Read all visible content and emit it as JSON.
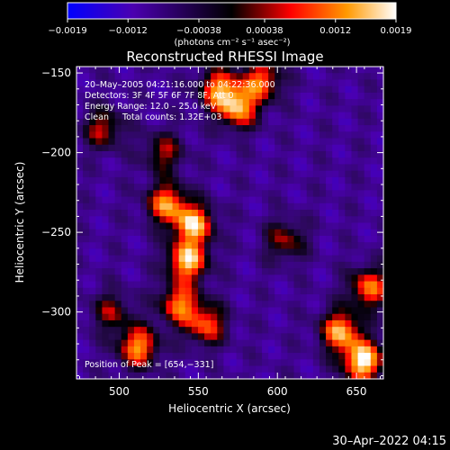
{
  "chart_data": {
    "type": "heatmap",
    "title": "Reconstructed RHESSI Image",
    "xlabel": "Heliocentric X (arcsec)",
    "ylabel": "Heliocentric Y (arcsec)",
    "xlim": [
      473,
      667
    ],
    "ylim": [
      -342,
      -146
    ],
    "x_ticks": [
      500,
      550,
      600,
      650
    ],
    "x_tick_labels": [
      "500",
      "550",
      "600",
      "650"
    ],
    "y_ticks": [
      -150,
      -200,
      -250,
      -300
    ],
    "y_tick_labels": [
      "−150",
      "−200",
      "−250",
      "−300"
    ],
    "colorbar": {
      "range": [
        -0.0019,
        0.0019
      ],
      "ticks": [
        -0.0019,
        -0.0012,
        -0.00038,
        0.00038,
        0.0012,
        0.0019
      ],
      "tick_labels": [
        "−0.0019",
        "−0.0012",
        "−0.00038",
        "0.00038",
        "0.0012",
        "0.0019"
      ],
      "units_label": "(photons cm⁻² s⁻¹ asec⁻²)",
      "colors": [
        "#0000ff",
        "#4b00b0",
        "#000000",
        "#ff0000",
        "#ff9900",
        "#ffffff"
      ]
    },
    "annotations": [
      "20–May–2005 04:21:16.000 to 04:22:36.000",
      "Detectors: 3F 4F 5F 6F 7F 8F, Att 0",
      "Energy Range: 12.0 – 25.0 keV",
      "Clean     Total counts: 1.32E+03"
    ],
    "peak_label": "Position of Peak = [654,−331]",
    "peak": [
      654,
      -331
    ],
    "sources": [
      {
        "x": 654,
        "y": -331,
        "value": 0.0019
      },
      {
        "x": 640,
        "y": -312,
        "value": 0.0014
      },
      {
        "x": 658,
        "y": -285,
        "value": 0.0011
      },
      {
        "x": 547,
        "y": -245,
        "value": 0.0015
      },
      {
        "x": 543,
        "y": -268,
        "value": 0.0016
      },
      {
        "x": 530,
        "y": -232,
        "value": 0.0012
      },
      {
        "x": 538,
        "y": -295,
        "value": 0.0011
      },
      {
        "x": 512,
        "y": -322,
        "value": 0.0013
      },
      {
        "x": 555,
        "y": -308,
        "value": 0.0009
      },
      {
        "x": 575,
        "y": -172,
        "value": 0.0013
      },
      {
        "x": 563,
        "y": -160,
        "value": 0.0011
      },
      {
        "x": 590,
        "y": -155,
        "value": 0.001
      },
      {
        "x": 490,
        "y": -185,
        "value": 0.0005
      },
      {
        "x": 528,
        "y": -200,
        "value": 0.0004
      },
      {
        "x": 605,
        "y": -255,
        "value": 0.0004
      },
      {
        "x": 495,
        "y": -300,
        "value": 0.0003
      }
    ],
    "background": -0.0009
  },
  "timestamp": "30–Apr–2022 04:15"
}
